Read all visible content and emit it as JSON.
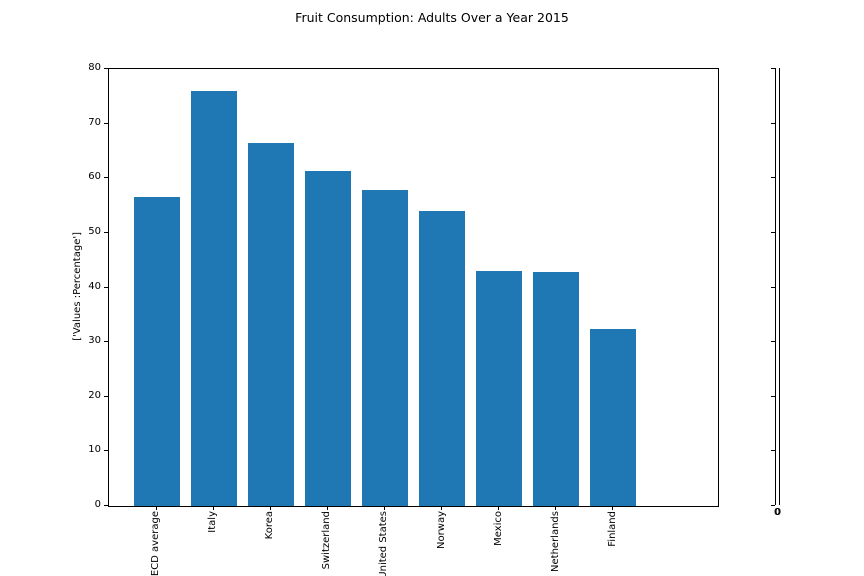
{
  "chart_data": {
    "type": "bar",
    "title": "Fruit Consumption: Adults Over a Year 2015",
    "categories": [
      "OECD average",
      "Italy",
      "Korea",
      "Switzerland",
      "United States",
      "Norway",
      "Mexico",
      "Netherlands",
      "Finland"
    ],
    "values": [
      56.6,
      76.0,
      66.4,
      61.3,
      57.8,
      54.0,
      43.1,
      42.9,
      32.4
    ],
    "xlabel": "",
    "ylabel": "['Values :Percentage']",
    "ylim": [
      0,
      80
    ],
    "yticks": [
      0,
      10,
      20,
      30,
      40,
      50,
      60,
      70,
      80
    ],
    "bar_color": "#1f77b4",
    "grid": false,
    "legend": null,
    "x_tick_rotation": 90
  },
  "secondary_axis": {
    "tick_count": 9,
    "x_tick_label": "0"
  }
}
